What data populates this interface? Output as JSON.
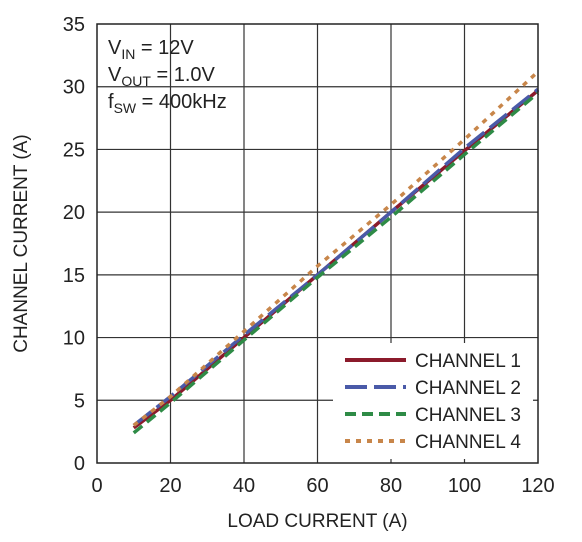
{
  "chart_data": {
    "type": "line",
    "xlabel": "LOAD CURRENT (A)",
    "ylabel": "CHANNEL CURRENT (A)",
    "xlim": [
      0,
      120
    ],
    "ylim": [
      0,
      35
    ],
    "xticks": [
      0,
      20,
      40,
      60,
      80,
      100,
      120
    ],
    "yticks": [
      0,
      5,
      10,
      15,
      20,
      25,
      30,
      35
    ],
    "grid": true,
    "legend_position": "bottom-right",
    "annotation": {
      "lines": [
        {
          "main": "V",
          "sub": "IN",
          "rest": " = 12V"
        },
        {
          "main": "V",
          "sub": "OUT",
          "rest": " = 1.0V"
        },
        {
          "main": "f",
          "sub": "SW",
          "rest": " = 400kHz"
        }
      ]
    },
    "series": [
      {
        "name": "CHANNEL 1",
        "color": "#8b1a2b",
        "style": "solid",
        "x": [
          10,
          20,
          40,
          60,
          80,
          100,
          120
        ],
        "y": [
          2.8,
          5.0,
          10.0,
          15.0,
          20.0,
          24.9,
          29.7
        ]
      },
      {
        "name": "CHANNEL 2",
        "color": "#4a5aa8",
        "style": "dash",
        "x": [
          10,
          20,
          40,
          60,
          80,
          100,
          120
        ],
        "y": [
          3.0,
          5.3,
          10.2,
          15.0,
          20.0,
          25.1,
          29.8
        ]
      },
      {
        "name": "CHANNEL 3",
        "color": "#2e8b46",
        "style": "dash-short",
        "x": [
          10,
          20,
          40,
          60,
          80,
          100,
          120
        ],
        "y": [
          2.4,
          4.8,
          9.8,
          14.8,
          19.6,
          24.6,
          29.5
        ]
      },
      {
        "name": "CHANNEL 4",
        "color": "#c8864a",
        "style": "dot",
        "x": [
          10,
          20,
          40,
          60,
          80,
          100,
          120
        ],
        "y": [
          3.0,
          5.3,
          10.5,
          15.7,
          20.6,
          25.8,
          31.2
        ]
      }
    ]
  }
}
